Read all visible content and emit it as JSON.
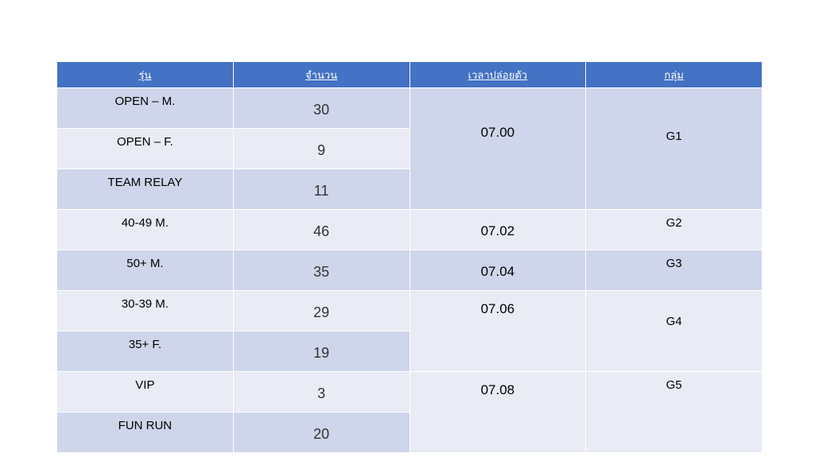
{
  "headers": [
    "รุ่น",
    "จำนวน",
    "เวลาปล่อยตัว",
    "กลุ่ม"
  ],
  "rows": [
    {
      "category": "OPEN – M.",
      "count": "30"
    },
    {
      "category": "OPEN – F.",
      "count": "9"
    },
    {
      "category": "TEAM RELAY",
      "count": "11"
    },
    {
      "category": "40-49 M.",
      "count": "46"
    },
    {
      "category": "50+ M.",
      "count": "35"
    },
    {
      "category": "30-39 M.",
      "count": "29"
    },
    {
      "category": "35+ F.",
      "count": "19"
    },
    {
      "category": "VIP",
      "count": "3"
    },
    {
      "category": "FUN RUN",
      "count": "20"
    }
  ],
  "times": [
    "07.00",
    "07.02",
    "07.04",
    "07.06",
    "07.08"
  ],
  "groups": [
    "G1",
    "G2",
    "G3",
    "G4",
    "G5"
  ],
  "colors": {
    "header": "#4472C4",
    "row_dark": "#CFD5EA",
    "row_light": "#E9EBF5"
  }
}
